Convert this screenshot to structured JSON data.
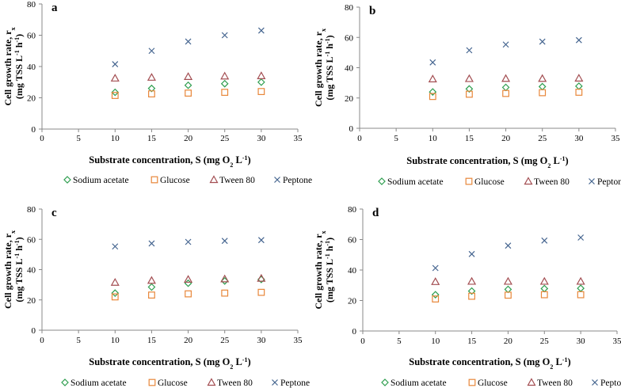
{
  "chart_data": {
    "type": "scatter",
    "colors": {
      "Sodium acetate": "#2e9e4f",
      "Glucose": "#e8873a",
      "Tween 80": "#a34e52",
      "Peptone": "#44648f"
    },
    "markers": {
      "Sodium acetate": "diamond",
      "Glucose": "square",
      "Tween 80": "triangle",
      "Peptone": "x"
    },
    "xlim": [
      0,
      35
    ],
    "ylim": [
      0,
      80
    ],
    "xticks": [
      "0",
      "5",
      "10",
      "15",
      "20",
      "25",
      "30",
      "35"
    ],
    "yticks": [
      "0",
      "20",
      "40",
      "60",
      "80"
    ],
    "xlabel": {
      "main": "Substrate concentration, S (mg O",
      "sub": "2",
      "mid": " L",
      "sup": "-1",
      "end": ")"
    },
    "ylabel": {
      "line1": "Cell growth rate, r",
      "line1_sub": "x",
      "line2a": "(mg TSS L",
      "line2_sup1": "-1",
      "line2b": " h",
      "line2_sup2": "-1",
      "line2c": ")"
    },
    "legend": [
      "Sodium acetate",
      "Glucose",
      "Tween 80",
      "Peptone"
    ],
    "legend_position": "bottom",
    "grid": false,
    "panels": [
      {
        "label": "a",
        "x": [
          10,
          15,
          20,
          25,
          30
        ],
        "series": [
          {
            "name": "Sodium acetate",
            "values": [
              23.5,
              26,
              28,
              29,
              30
            ]
          },
          {
            "name": "Glucose",
            "values": [
              21.5,
              22.5,
              23,
              23.5,
              24
            ]
          },
          {
            "name": "Tween 80",
            "values": [
              32.5,
              33,
              33.5,
              33.8,
              34
            ]
          },
          {
            "name": "Peptone",
            "values": [
              41.5,
              50,
              56,
              60,
              63
            ]
          }
        ]
      },
      {
        "label": "b",
        "x": [
          10,
          15,
          20,
          25,
          30
        ],
        "series": [
          {
            "name": "Sodium acetate",
            "values": [
              24,
              26,
              27,
              27.5,
              27.8
            ]
          },
          {
            "name": "Glucose",
            "values": [
              21,
              22.5,
              23,
              23.5,
              23.8
            ]
          },
          {
            "name": "Tween 80",
            "values": [
              32.5,
              32.7,
              32.8,
              32.8,
              33
            ]
          },
          {
            "name": "Peptone",
            "values": [
              43.5,
              51.5,
              55.3,
              57.2,
              58.2
            ]
          }
        ]
      },
      {
        "label": "c",
        "x": [
          10,
          15,
          20,
          25,
          30
        ],
        "series": [
          {
            "name": "Sodium acetate",
            "values": [
              24.5,
              28.5,
              31,
              32.5,
              33.5
            ]
          },
          {
            "name": "Glucose",
            "values": [
              22,
              23.2,
              24,
              24.5,
              25
            ]
          },
          {
            "name": "Tween 80",
            "values": [
              31.5,
              32.8,
              33.5,
              33.8,
              34.2
            ]
          },
          {
            "name": "Peptone",
            "values": [
              55.3,
              57.3,
              58.3,
              59,
              59.5
            ]
          }
        ]
      },
      {
        "label": "d",
        "x": [
          10,
          15,
          20,
          25,
          30
        ],
        "series": [
          {
            "name": "Sodium acetate",
            "values": [
              23.8,
              26.2,
              27.3,
              27.8,
              28
            ]
          },
          {
            "name": "Glucose",
            "values": [
              21,
              22.8,
              23.5,
              23.8,
              23.8
            ]
          },
          {
            "name": "Tween 80",
            "values": [
              32.3,
              32.5,
              32.5,
              32.5,
              32.5
            ]
          },
          {
            "name": "Peptone",
            "values": [
              41.3,
              50.5,
              56,
              59.3,
              61.3
            ]
          }
        ]
      }
    ]
  }
}
